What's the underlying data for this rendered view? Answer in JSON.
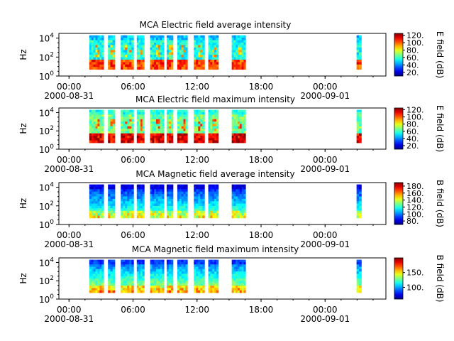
{
  "chart_data": [
    {
      "type": "heatmap",
      "title": "MCA  Electric field average intensity",
      "ylabel": "Hz",
      "y_ticks": [
        "10",
        "10",
        "10"
      ],
      "y_tick_exponents": [
        "0",
        "2",
        "4"
      ],
      "x_ticks": [
        "00:00",
        "06:00",
        "12:00",
        "18:00",
        "00:00"
      ],
      "x_start_date": "2000-08-31",
      "x_end_date": "2000-09-01",
      "colorbar_label": "E field (dB)",
      "colorbar_ticks": [
        "20.",
        "40.",
        "60.",
        "80.",
        "100.",
        "120."
      ],
      "colorbar_range": [
        10,
        125
      ],
      "colormap": "jet",
      "data_intervals_hours": [
        [
          2.85,
          4.2
        ],
        [
          4.6,
          5.25
        ],
        [
          5.8,
          7.0
        ],
        [
          7.3,
          8.0
        ],
        [
          8.55,
          9.85
        ],
        [
          10.1,
          10.7
        ],
        [
          11.1,
          12.05
        ],
        [
          12.65,
          13.65
        ],
        [
          14.0,
          14.95
        ],
        [
          16.2,
          17.5
        ],
        [
          27.9,
          28.35
        ]
      ],
      "y_range_exponent": [
        0,
        4.5
      ]
    },
    {
      "type": "heatmap",
      "title": "MCA  Electric field maximum intensity",
      "ylabel": "Hz",
      "y_ticks": [
        "10",
        "10",
        "10"
      ],
      "y_tick_exponents": [
        "0",
        "2",
        "4"
      ],
      "x_ticks": [
        "00:00",
        "06:00",
        "12:00",
        "18:00",
        "00:00"
      ],
      "x_start_date": "2000-08-31",
      "x_end_date": "2000-09-01",
      "colorbar_label": "E field (dB)",
      "colorbar_ticks": [
        "20.",
        "40.",
        "60.",
        "80.",
        "100.",
        "120."
      ],
      "colorbar_range": [
        10,
        125
      ],
      "colormap": "jet",
      "data_intervals_hours": [
        [
          2.85,
          4.2
        ],
        [
          4.6,
          5.25
        ],
        [
          5.8,
          7.0
        ],
        [
          7.3,
          8.0
        ],
        [
          8.55,
          9.85
        ],
        [
          10.1,
          10.7
        ],
        [
          11.1,
          12.05
        ],
        [
          12.65,
          13.65
        ],
        [
          14.0,
          14.95
        ],
        [
          16.2,
          17.5
        ],
        [
          27.9,
          28.35
        ]
      ],
      "y_range_exponent": [
        0,
        4.5
      ]
    },
    {
      "type": "heatmap",
      "title": "MCA  Magnetic field average intensity",
      "ylabel": "Hz",
      "y_ticks": [
        "10",
        "10",
        "10"
      ],
      "y_tick_exponents": [
        "0",
        "2",
        "4"
      ],
      "x_ticks": [
        "00:00",
        "06:00",
        "12:00",
        "18:00",
        "00:00"
      ],
      "x_start_date": "2000-08-31",
      "x_end_date": "2000-09-01",
      "colorbar_label": "B field (dB)",
      "colorbar_ticks": [
        "80.",
        "100.",
        "120.",
        "140.",
        "160.",
        "180."
      ],
      "colorbar_range": [
        70,
        190
      ],
      "colormap": "jet",
      "data_intervals_hours": [
        [
          2.85,
          4.2
        ],
        [
          4.6,
          5.25
        ],
        [
          5.8,
          7.0
        ],
        [
          7.3,
          8.0
        ],
        [
          8.55,
          9.85
        ],
        [
          10.1,
          10.7
        ],
        [
          11.1,
          12.05
        ],
        [
          12.65,
          13.65
        ],
        [
          14.0,
          14.95
        ],
        [
          16.2,
          17.5
        ],
        [
          27.9,
          28.35
        ]
      ],
      "y_range_exponent": [
        0,
        4.5
      ]
    },
    {
      "type": "heatmap",
      "title": "MCA  Magnetic field maximum intensity",
      "ylabel": "Hz",
      "y_ticks": [
        "10",
        "10",
        "10"
      ],
      "y_tick_exponents": [
        "0",
        "2",
        "4"
      ],
      "x_ticks": [
        "00:00",
        "06:00",
        "12:00",
        "18:00",
        "00:00"
      ],
      "x_start_date": "2000-08-31",
      "x_end_date": "2000-09-01",
      "colorbar_label": "B field (dB)",
      "colorbar_ticks": [
        "100.",
        "150."
      ],
      "colorbar_range": [
        60,
        200
      ],
      "colormap": "jet",
      "data_intervals_hours": [
        [
          2.85,
          4.2
        ],
        [
          4.6,
          5.25
        ],
        [
          5.8,
          7.0
        ],
        [
          7.3,
          8.0
        ],
        [
          8.55,
          9.85
        ],
        [
          10.1,
          10.7
        ],
        [
          11.1,
          12.05
        ],
        [
          12.65,
          13.65
        ],
        [
          14.0,
          14.95
        ],
        [
          16.2,
          17.5
        ],
        [
          27.9,
          28.35
        ]
      ],
      "y_range_exponent": [
        0,
        4.5
      ]
    }
  ]
}
